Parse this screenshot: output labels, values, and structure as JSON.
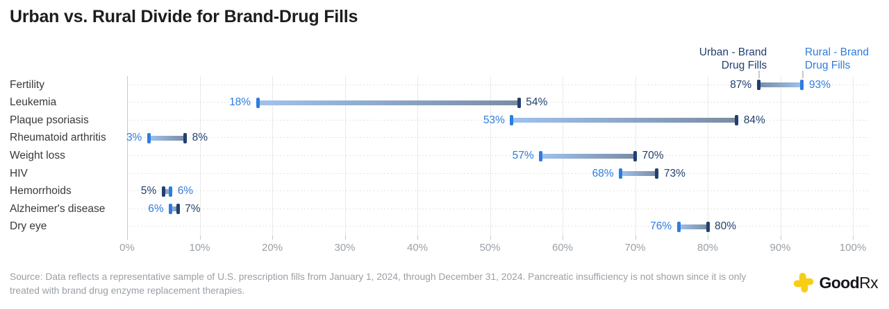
{
  "title": "Urban vs. Rural Divide for Brand-Drug Fills",
  "legend": {
    "urban": {
      "lines": [
        "Urban - Brand",
        "Drug Fills"
      ],
      "color": "#21406F"
    },
    "rural": {
      "lines": [
        "Rural - Brand",
        "Drug Fills"
      ],
      "color": "#2E7CE0"
    }
  },
  "chart_data": {
    "type": "dumbbell",
    "title": "Urban vs. Rural Divide for Brand-Drug Fills",
    "categories": [
      "Fertility",
      "Leukemia",
      "Plaque psoriasis",
      "Rheumatoid arthritis",
      "Weight loss",
      "HIV",
      "Hemorrhoids",
      "Alzheimer's disease",
      "Dry eye"
    ],
    "series": [
      {
        "name": "Urban - Brand Drug Fills",
        "color": "#21406F",
        "values": [
          87,
          54,
          84,
          8,
          70,
          73,
          5,
          7,
          80
        ]
      },
      {
        "name": "Rural - Brand Drug Fills",
        "color": "#2E7CE0",
        "values": [
          93,
          18,
          53,
          3,
          57,
          68,
          6,
          6,
          76
        ]
      }
    ],
    "value_suffix": "%",
    "xlim": [
      0,
      100
    ],
    "xtick_labels": [
      "0%",
      "10%",
      "20%",
      "30%",
      "40%",
      "50%",
      "60%",
      "70%",
      "80%",
      "90%",
      "100%"
    ],
    "grid": "vertical solid gridlines + dotted horizontal row guides",
    "legend_position": "top-right",
    "bar_gradient_rural_to_urban": [
      "#9FC2ED",
      "#7A8CA3"
    ]
  },
  "source": "Source: Data reflects a representative sample of U.S. prescription fills from January 1, 2024, through December 31, 2024. Pancreatic insufficiency is not shown since it is only treated with brand drug enzyme replacement therapies.",
  "logo": {
    "brand_bold": "Good",
    "brand_suffix": "Rx",
    "icon_color": "#F7CE15"
  }
}
